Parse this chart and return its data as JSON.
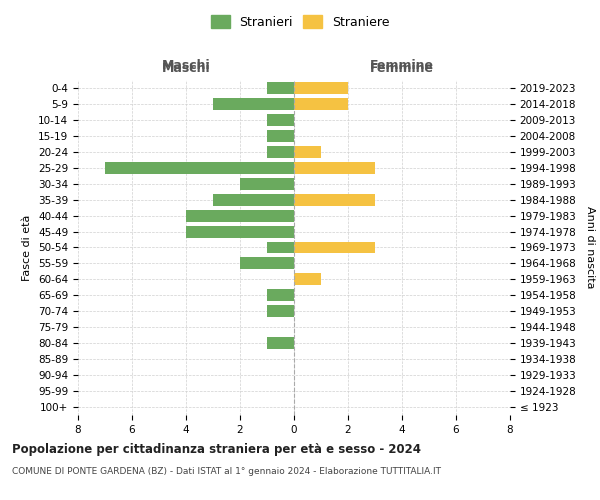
{
  "age_groups": [
    "100+",
    "95-99",
    "90-94",
    "85-89",
    "80-84",
    "75-79",
    "70-74",
    "65-69",
    "60-64",
    "55-59",
    "50-54",
    "45-49",
    "40-44",
    "35-39",
    "30-34",
    "25-29",
    "20-24",
    "15-19",
    "10-14",
    "5-9",
    "0-4"
  ],
  "birth_years": [
    "≤ 1923",
    "1924-1928",
    "1929-1933",
    "1934-1938",
    "1939-1943",
    "1944-1948",
    "1949-1953",
    "1954-1958",
    "1959-1963",
    "1964-1968",
    "1969-1973",
    "1974-1978",
    "1979-1983",
    "1984-1988",
    "1989-1993",
    "1994-1998",
    "1999-2003",
    "2004-2008",
    "2009-2013",
    "2014-2018",
    "2019-2023"
  ],
  "maschi": [
    0,
    0,
    0,
    0,
    1,
    0,
    1,
    1,
    0,
    2,
    1,
    4,
    4,
    3,
    2,
    7,
    1,
    1,
    1,
    3,
    1
  ],
  "femmine": [
    0,
    0,
    0,
    0,
    0,
    0,
    0,
    0,
    1,
    0,
    3,
    0,
    0,
    3,
    0,
    3,
    1,
    0,
    0,
    2,
    2
  ],
  "color_maschi": "#6aaa5e",
  "color_femmine": "#f5c242",
  "title": "Popolazione per cittadinanza straniera per età e sesso - 2024",
  "subtitle": "COMUNE DI PONTE GARDENA (BZ) - Dati ISTAT al 1° gennaio 2024 - Elaborazione TUTTITALIA.IT",
  "xlabel_left": "Maschi",
  "xlabel_right": "Femmine",
  "ylabel": "Fasce di età",
  "ylabel_right": "Anni di nascita",
  "legend_maschi": "Stranieri",
  "legend_femmine": "Straniere",
  "xlim": 8,
  "bg_color": "#ffffff",
  "grid_color": "#d0d0d0",
  "bar_height": 0.75
}
